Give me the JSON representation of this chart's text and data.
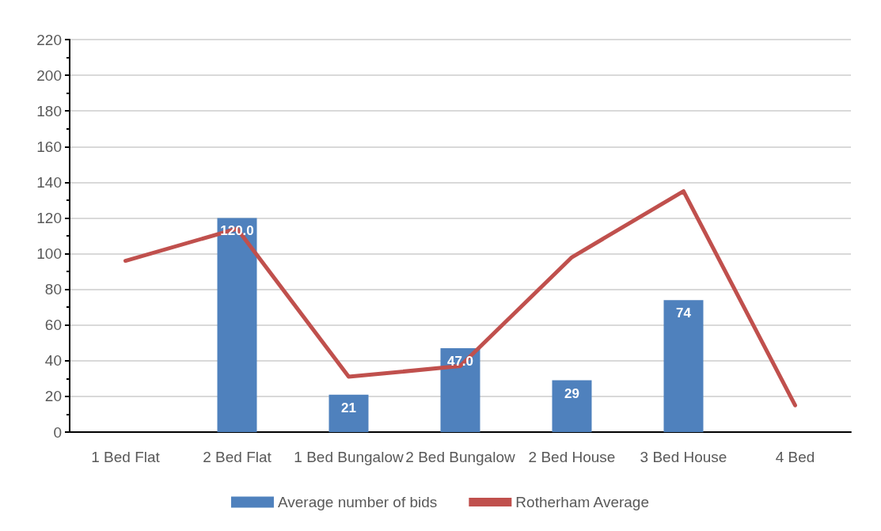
{
  "chart_data": {
    "type": "bar",
    "categories": [
      "1 Bed Flat",
      "2 Bed Flat",
      "1 Bed Bungalow",
      "2 Bed Bungalow",
      "2 Bed House",
      "3 Bed House",
      "4 Bed"
    ],
    "series": [
      {
        "name": "Average number of bids",
        "color": "#4f81bd",
        "values": [
          null,
          120,
          21,
          47,
          29,
          74,
          null
        ],
        "value_labels": [
          null,
          "120.0",
          "21",
          "47.0",
          "29",
          "74",
          null
        ]
      },
      {
        "name": "Rotherham Average",
        "type": "line",
        "color": "#c0504d",
        "values": [
          96,
          114,
          31,
          37,
          98,
          135,
          15
        ]
      }
    ],
    "ylim": [
      0,
      220
    ],
    "yticks": [
      0,
      20,
      40,
      60,
      80,
      100,
      120,
      140,
      160,
      180,
      200,
      220
    ],
    "grid": "y",
    "legend": "bottom",
    "marker": "none",
    "line_style": "solid"
  }
}
